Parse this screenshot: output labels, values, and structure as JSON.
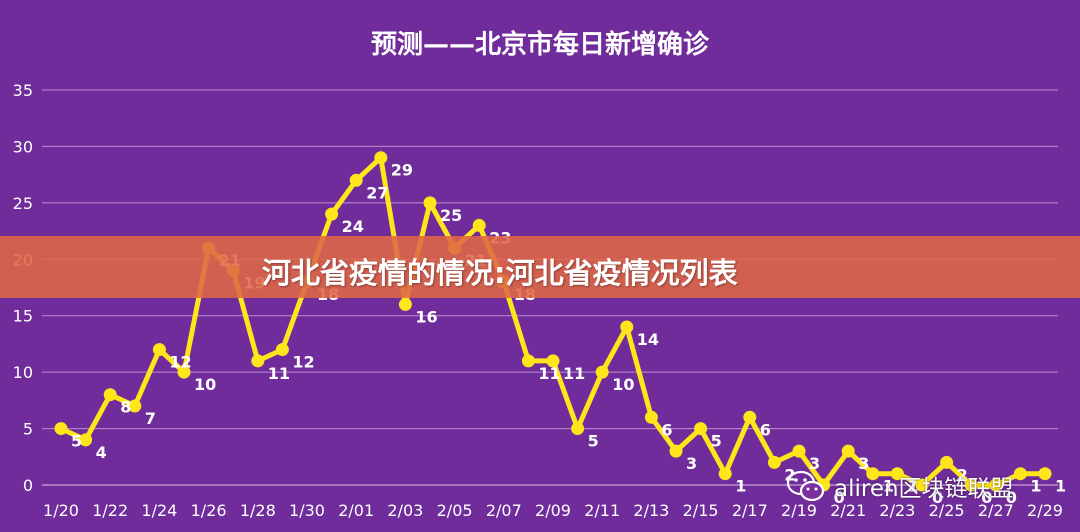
{
  "chart_data": {
    "type": "line",
    "title": "预测——北京市每日新增确诊",
    "xlabel": "",
    "ylabel": "",
    "ylim": [
      0,
      35
    ],
    "yticks": [
      0,
      5,
      10,
      15,
      20,
      25,
      30,
      35
    ],
    "x_tick_labels": [
      "1/20",
      "1/22",
      "1/24",
      "1/26",
      "1/28",
      "1/30",
      "2/01",
      "2/03",
      "2/05",
      "2/07",
      "2/09",
      "2/11",
      "2/13",
      "2/15",
      "2/17",
      "2/19",
      "2/21",
      "2/23",
      "2/25",
      "2/27",
      "2/29"
    ],
    "x_start": "1/20",
    "grid": true,
    "legend": "none",
    "series": [
      {
        "values": [
          5,
          4,
          8,
          7,
          12,
          10,
          21,
          19,
          11,
          12,
          18,
          24,
          27,
          29,
          16,
          25,
          21,
          23,
          18,
          11,
          11,
          5,
          10,
          14,
          6,
          3,
          5,
          1,
          6,
          2,
          3,
          0,
          3,
          1,
          1,
          0,
          2,
          0,
          0,
          1,
          1
        ],
        "data_labels": [
          "5",
          "4",
          "8",
          "7",
          "12",
          "10",
          "21",
          "19",
          "11",
          "12",
          "18",
          "24",
          "27",
          "29",
          "16",
          "25",
          "21",
          "23",
          "18",
          "11",
          "11",
          "5",
          "10",
          "14",
          "6",
          "3",
          "5",
          "1",
          "6",
          "2",
          "3",
          "0",
          "3",
          "1",
          "1",
          "0",
          "2",
          "0",
          "0",
          "1",
          "1"
        ],
        "color": "#ffe61a"
      }
    ],
    "background_color": "#6f2c9a",
    "title_color": "#ffffff",
    "text_color": "#ffffff",
    "grid_color": "#b98fd0"
  },
  "overlay": {
    "banner_text": "河北省疫情的情况:河北省疫情况列表",
    "banner_color": "#e06846"
  },
  "watermark": {
    "icon": "wechat-icon",
    "text": "aliren区块链联盟"
  }
}
